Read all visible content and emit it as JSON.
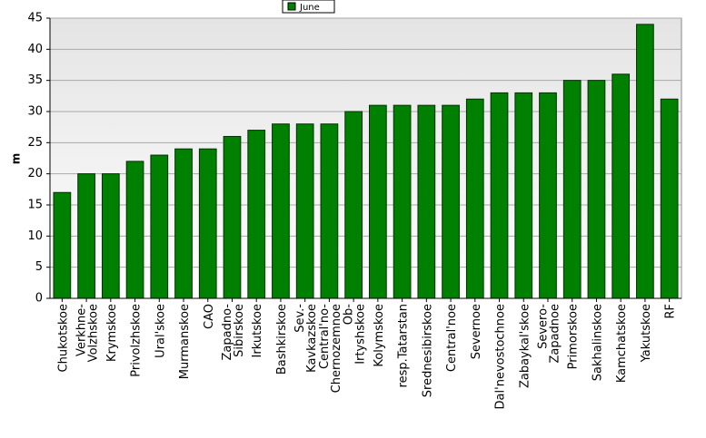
{
  "chart_data": {
    "type": "bar",
    "y_label": "m",
    "categories": [
      "Chukotskoe",
      "Verkhne-\nVolzhskoe",
      "Krymskoe",
      "Privolzhskoe",
      "Ural'skoe",
      "Murmanskoe",
      "CAO",
      "Zapadno-\nSibirskoe",
      "Irkutskoe",
      "Bashkirskoe",
      "Sev.-\nKavkazskoe",
      "Central'no-\nChernozemnoe",
      "Ob-\nIrtyshskoe",
      "Kolymskoe",
      "resp.Tatarstan",
      "Srednesibirskoe",
      "Central'noe",
      "Severnoe",
      "Dal'nevostochnoe",
      "Zabaykal'skoe",
      "Severo-\nZapadnoe",
      "Primorskoe",
      "Sakhalinskoe",
      "Kamchatskoe",
      "Yakutskoe",
      "RF"
    ],
    "series": [
      {
        "name": "June",
        "color": "#008000",
        "values": [
          17,
          20,
          20,
          22,
          23,
          24,
          24,
          26,
          27,
          28,
          28,
          28,
          30,
          31,
          31,
          31,
          31,
          32,
          33,
          33,
          33,
          35,
          35,
          36,
          44,
          32
        ]
      }
    ],
    "ylim": [
      0,
      45
    ],
    "yticks": [
      0,
      5,
      10,
      15,
      20,
      25,
      30,
      35,
      40,
      45
    ],
    "grid": true,
    "legend": "top"
  }
}
